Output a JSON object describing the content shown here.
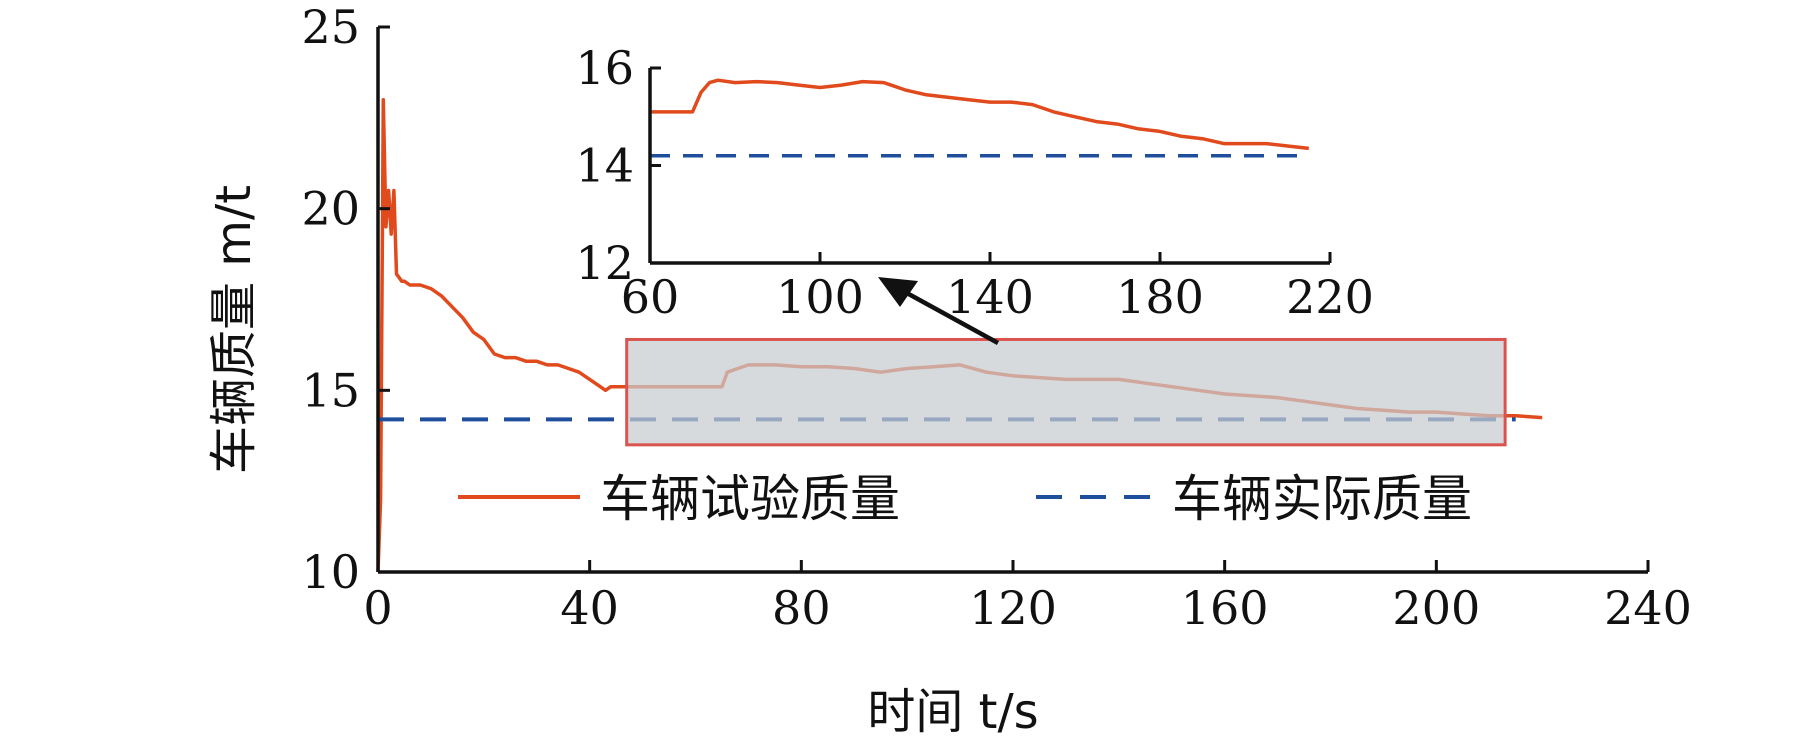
{
  "colors": {
    "test_mass": "#e04a1c",
    "actual_mass": "#1f4e9c",
    "zoom_box_fill": "#c8ccd0",
    "zoom_box_stroke": "#d9534f",
    "axis": "#111111"
  },
  "chart_data": [
    {
      "id": "main",
      "type": "line",
      "xlabel": "时间 t/s",
      "ylabel": "车辆质量 m/t",
      "xlim": [
        0,
        240
      ],
      "ylim": [
        10,
        25
      ],
      "xticks": [
        "0",
        "40",
        "80",
        "120",
        "160",
        "200",
        "240"
      ],
      "yticks": [
        "10",
        "15",
        "20",
        "25"
      ],
      "grid": false,
      "legend_position": "bottom-center",
      "series": [
        {
          "name": "车辆试验质量",
          "style": "solid",
          "x": [
            0,
            0.5,
            1,
            1.5,
            2,
            2.5,
            3,
            3.5,
            4,
            4.5,
            5,
            6,
            8,
            10,
            12,
            14,
            16,
            18,
            20,
            22,
            24,
            26,
            28,
            30,
            32,
            34,
            36,
            38,
            40,
            42,
            43,
            44,
            46,
            48,
            55,
            60,
            65,
            66,
            68,
            70,
            75,
            80,
            85,
            90,
            95,
            100,
            105,
            110,
            115,
            120,
            125,
            130,
            135,
            140,
            145,
            150,
            155,
            160,
            165,
            170,
            175,
            180,
            185,
            190,
            195,
            200,
            205,
            210,
            215,
            220
          ],
          "y": [
            10,
            12,
            23.0,
            19.5,
            20.5,
            19.3,
            20.5,
            18.2,
            18.1,
            18.0,
            18.0,
            17.9,
            17.9,
            17.8,
            17.6,
            17.3,
            17.0,
            16.6,
            16.4,
            16.0,
            15.9,
            15.9,
            15.8,
            15.8,
            15.7,
            15.7,
            15.6,
            15.5,
            15.3,
            15.1,
            15.0,
            15.1,
            15.1,
            15.1,
            15.1,
            15.1,
            15.1,
            15.5,
            15.6,
            15.7,
            15.7,
            15.65,
            15.65,
            15.6,
            15.5,
            15.6,
            15.65,
            15.7,
            15.5,
            15.4,
            15.35,
            15.3,
            15.3,
            15.3,
            15.2,
            15.1,
            15.0,
            14.9,
            14.85,
            14.8,
            14.7,
            14.6,
            14.5,
            14.45,
            14.4,
            14.4,
            14.35,
            14.3,
            14.3,
            14.25
          ]
        },
        {
          "name": "车辆实际质量",
          "style": "dashed",
          "x": [
            0,
            215
          ],
          "y": [
            14.2,
            14.2
          ]
        }
      ],
      "zoom_box": {
        "x": [
          47,
          213
        ],
        "y": [
          13.5,
          16.4
        ]
      }
    },
    {
      "id": "inset",
      "type": "line",
      "xlim": [
        60,
        220
      ],
      "ylim": [
        12,
        16
      ],
      "xticks": [
        "60",
        "100",
        "140",
        "180",
        "220"
      ],
      "yticks": [
        "12",
        "14",
        "16"
      ],
      "grid": false,
      "series": [
        {
          "name": "车辆试验质量",
          "style": "solid",
          "x": [
            60,
            65,
            70,
            72,
            74,
            76,
            80,
            85,
            90,
            95,
            100,
            105,
            110,
            115,
            120,
            125,
            130,
            135,
            140,
            145,
            150,
            155,
            160,
            165,
            170,
            175,
            180,
            185,
            190,
            195,
            200,
            205,
            210,
            215
          ],
          "y": [
            15.1,
            15.1,
            15.1,
            15.5,
            15.7,
            15.75,
            15.7,
            15.72,
            15.7,
            15.65,
            15.6,
            15.65,
            15.72,
            15.7,
            15.55,
            15.45,
            15.4,
            15.35,
            15.3,
            15.3,
            15.25,
            15.1,
            15.0,
            14.9,
            14.85,
            14.75,
            14.7,
            14.6,
            14.55,
            14.45,
            14.45,
            14.45,
            14.4,
            14.35
          ]
        },
        {
          "name": "车辆实际质量",
          "style": "dashed",
          "x": [
            60,
            213
          ],
          "y": [
            14.2,
            14.2
          ]
        }
      ]
    }
  ],
  "legend": {
    "items": [
      "车辆试验质量",
      "车辆实际质量"
    ]
  }
}
